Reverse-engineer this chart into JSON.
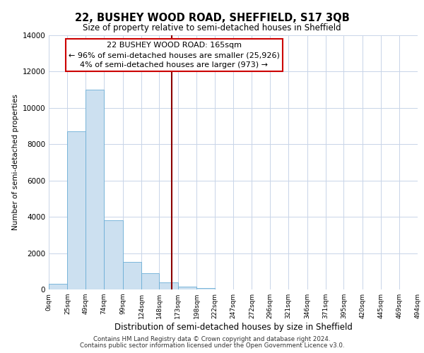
{
  "title": "22, BUSHEY WOOD ROAD, SHEFFIELD, S17 3QB",
  "subtitle": "Size of property relative to semi-detached houses in Sheffield",
  "xlabel": "Distribution of semi-detached houses by size in Sheffield",
  "ylabel": "Number of semi-detached properties",
  "bin_edges": [
    0,
    25,
    49,
    74,
    99,
    124,
    148,
    173,
    198,
    222,
    247,
    272,
    296,
    321,
    346,
    371,
    395,
    420,
    445,
    469,
    494
  ],
  "bar_heights": [
    300,
    8700,
    11000,
    3800,
    1500,
    900,
    400,
    150,
    80,
    0,
    0,
    0,
    0,
    0,
    0,
    0,
    0,
    0,
    0,
    0
  ],
  "bar_color": "#cce0f0",
  "bar_edge_color": "#6baed6",
  "vline_x": 165,
  "vline_color": "#8b0000",
  "annotation_title": "22 BUSHEY WOOD ROAD: 165sqm",
  "annotation_line1": "← 96% of semi-detached houses are smaller (25,926)",
  "annotation_line2": "4% of semi-detached houses are larger (973) →",
  "annotation_box_facecolor": "#ffffff",
  "annotation_box_edgecolor": "#cc0000",
  "ylim": [
    0,
    14000
  ],
  "yticks": [
    0,
    2000,
    4000,
    6000,
    8000,
    10000,
    12000,
    14000
  ],
  "tick_labels": [
    "0sqm",
    "25sqm",
    "49sqm",
    "74sqm",
    "99sqm",
    "124sqm",
    "148sqm",
    "173sqm",
    "198sqm",
    "222sqm",
    "247sqm",
    "272sqm",
    "296sqm",
    "321sqm",
    "346sqm",
    "371sqm",
    "395sqm",
    "420sqm",
    "445sqm",
    "469sqm",
    "494sqm"
  ],
  "footer_line1": "Contains HM Land Registry data © Crown copyright and database right 2024.",
  "footer_line2": "Contains public sector information licensed under the Open Government Licence v3.0.",
  "background_color": "#ffffff",
  "grid_color": "#c8d4e8"
}
